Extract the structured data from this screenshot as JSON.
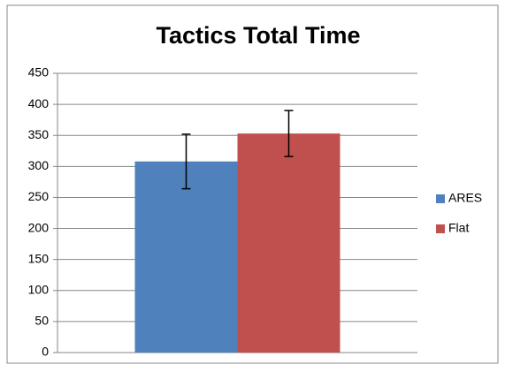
{
  "chart_data": {
    "type": "bar",
    "title": "Tactics Total Time",
    "categories": [
      null
    ],
    "series": [
      {
        "name": "ARES",
        "color": "#4f81bd",
        "values": [
          308
        ],
        "errors": [
          44
        ]
      },
      {
        "name": "Flat",
        "color": "#c0504d",
        "values": [
          353
        ],
        "errors": [
          37
        ]
      }
    ],
    "ylim": [
      0,
      450
    ],
    "yticks": [
      0,
      50,
      100,
      150,
      200,
      250,
      300,
      350,
      400,
      450
    ],
    "grid": true,
    "legend": "right"
  }
}
